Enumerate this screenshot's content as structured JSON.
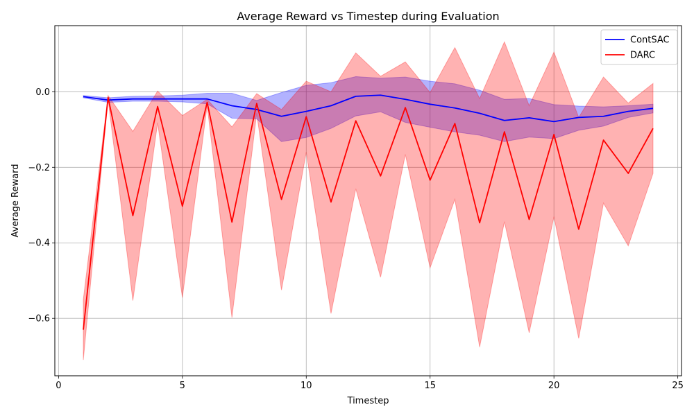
{
  "chart_data": {
    "type": "line",
    "title": "Average Reward vs Timestep during Evaluation",
    "xlabel": "Timestep",
    "ylabel": "Average Reward",
    "xlim": [
      -0.15,
      25.15
    ],
    "ylim": [
      -0.752,
      0.175
    ],
    "xticks": [
      0,
      5,
      10,
      15,
      20,
      25
    ],
    "xtick_labels": [
      "0",
      "5",
      "10",
      "15",
      "20",
      "25"
    ],
    "yticks": [
      -0.6,
      -0.4,
      -0.2,
      0.0
    ],
    "ytick_labels": [
      "−0.6",
      "−0.4",
      "−0.2",
      "0.0"
    ],
    "grid": true,
    "legend_position": "top-right",
    "x": [
      1,
      2,
      3,
      4,
      5,
      6,
      7,
      8,
      9,
      10,
      11,
      12,
      13,
      14,
      15,
      16,
      17,
      18,
      19,
      20,
      21,
      22,
      23,
      24
    ],
    "series": [
      {
        "name": "ContSAC",
        "color": "#0000ff",
        "band_color": "#0000ff",
        "values": [
          -0.013,
          -0.022,
          -0.019,
          -0.019,
          -0.019,
          -0.019,
          -0.037,
          -0.047,
          -0.065,
          -0.052,
          -0.037,
          -0.012,
          -0.009,
          -0.02,
          -0.033,
          -0.043,
          -0.057,
          -0.076,
          -0.069,
          -0.079,
          -0.068,
          -0.065,
          -0.052,
          -0.044
        ],
        "upper": [
          -0.01,
          -0.016,
          -0.012,
          -0.011,
          -0.009,
          -0.004,
          -0.004,
          -0.023,
          -0.002,
          0.017,
          0.024,
          0.04,
          0.036,
          0.039,
          0.028,
          0.021,
          0.004,
          -0.02,
          -0.018,
          -0.034,
          -0.038,
          -0.04,
          -0.037,
          -0.033
        ],
        "lower": [
          -0.016,
          -0.028,
          -0.025,
          -0.025,
          -0.027,
          -0.032,
          -0.07,
          -0.072,
          -0.132,
          -0.121,
          -0.097,
          -0.064,
          -0.053,
          -0.081,
          -0.094,
          -0.106,
          -0.115,
          -0.132,
          -0.12,
          -0.124,
          -0.102,
          -0.091,
          -0.068,
          -0.056
        ]
      },
      {
        "name": "DARC",
        "color": "#ff0000",
        "band_color": "#ff0000",
        "values": [
          -0.63,
          -0.015,
          -0.328,
          -0.039,
          -0.303,
          -0.028,
          -0.345,
          -0.031,
          -0.285,
          -0.066,
          -0.292,
          -0.077,
          -0.223,
          -0.042,
          -0.234,
          -0.084,
          -0.347,
          -0.106,
          -0.338,
          -0.113,
          -0.364,
          -0.128,
          -0.216,
          -0.097
        ],
        "upper": [
          -0.55,
          -0.01,
          -0.105,
          0.002,
          -0.063,
          -0.02,
          -0.093,
          -0.005,
          -0.047,
          0.028,
          0.0,
          0.103,
          0.041,
          0.079,
          -0.002,
          0.117,
          -0.018,
          0.132,
          -0.037,
          0.105,
          -0.068,
          0.039,
          -0.03,
          0.022
        ],
        "lower": [
          -0.71,
          -0.02,
          -0.553,
          -0.082,
          -0.545,
          -0.036,
          -0.598,
          -0.057,
          -0.525,
          -0.16,
          -0.587,
          -0.257,
          -0.491,
          -0.166,
          -0.466,
          -0.285,
          -0.676,
          -0.344,
          -0.638,
          -0.331,
          -0.653,
          -0.295,
          -0.408,
          -0.216
        ]
      }
    ]
  }
}
